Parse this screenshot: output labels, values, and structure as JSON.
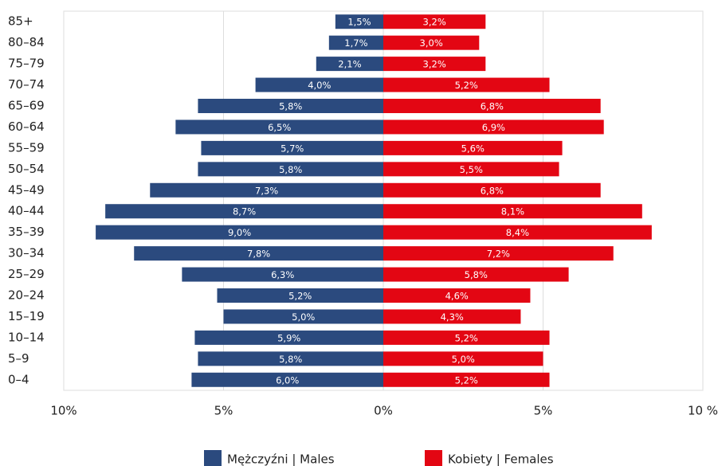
{
  "chart_data": {
    "type": "pyramid",
    "categories": [
      "85+",
      "80–84",
      "75–79",
      "70–74",
      "65–69",
      "60–64",
      "55–59",
      "50–54",
      "45–49",
      "40–44",
      "35–39",
      "30–34",
      "25–29",
      "20–24",
      "15–19",
      "10–14",
      "5–9",
      "0–4"
    ],
    "series": [
      {
        "name": "Mężczyźni | Males",
        "color": "#2b4a7e",
        "side": "left",
        "values": [
          1.5,
          1.7,
          2.1,
          4.0,
          5.8,
          6.5,
          5.7,
          5.8,
          7.3,
          8.7,
          9.0,
          7.8,
          6.3,
          5.2,
          5.0,
          5.9,
          5.8,
          6.0
        ],
        "value_labels": [
          "1,5%",
          "1,7%",
          "2,1%",
          "4,0%",
          "5,8%",
          "6,5%",
          "5,7%",
          "5,8%",
          "7,3%",
          "8,7%",
          "9,0%",
          "7,8%",
          "6,3%",
          "5,2%",
          "5,0%",
          "5,9%",
          "5,8%",
          "6,0%"
        ]
      },
      {
        "name": "Kobiety | Females",
        "color": "#e30613",
        "side": "right",
        "values": [
          3.2,
          3.0,
          3.2,
          5.2,
          6.8,
          6.9,
          5.6,
          5.5,
          6.8,
          8.1,
          8.4,
          7.2,
          5.8,
          4.6,
          4.3,
          5.2,
          5.0,
          5.2
        ],
        "value_labels": [
          "3,2%",
          "3,0%",
          "3,2%",
          "5,2%",
          "6,8%",
          "6,9%",
          "5,6%",
          "5,5%",
          "6,8%",
          "8,1%",
          "8,4%",
          "7,2%",
          "5,8%",
          "4,6%",
          "4,3%",
          "5,2%",
          "5,0%",
          "5,2%"
        ]
      }
    ],
    "xlim": [
      -10,
      10
    ],
    "xticks": [
      {
        "value": -10,
        "label": "10%"
      },
      {
        "value": -5,
        "label": "5%"
      },
      {
        "value": 0,
        "label": "0%"
      },
      {
        "value": 5,
        "label": "5%"
      },
      {
        "value": 10,
        "label": "10 %"
      }
    ],
    "grid": true,
    "legend": "bottom"
  }
}
